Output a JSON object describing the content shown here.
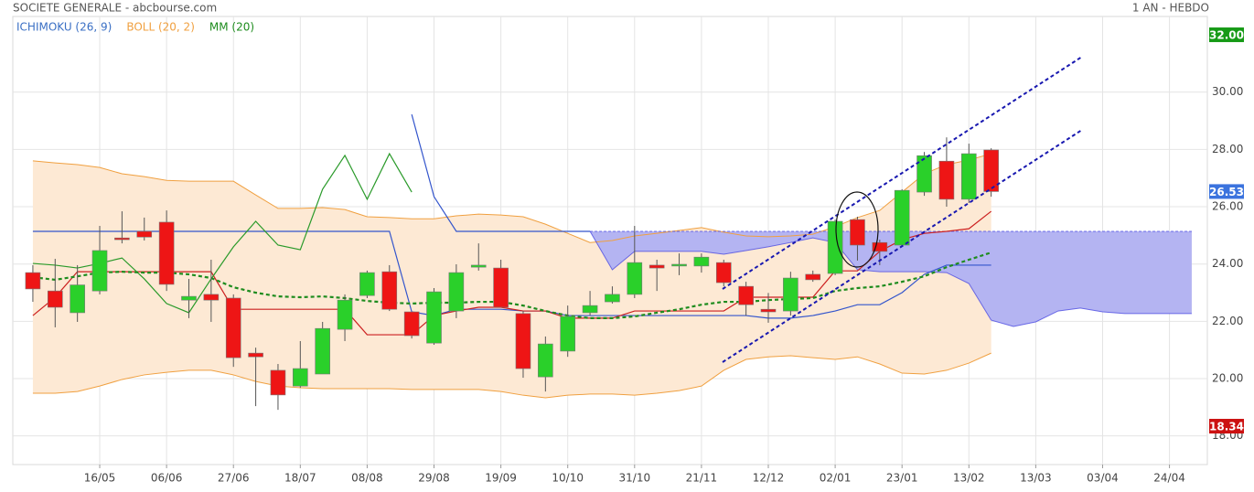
{
  "chart_data": {
    "type": "candlestick",
    "title": "SOCIETE GENERALE - abcbourse.com",
    "subtitle": "1 AN - HEBDO",
    "legend": [
      {
        "name": "ICHIMOKU (26, 9)",
        "color": "#3a6fc4"
      },
      {
        "name": "BOLL (20, 2)",
        "color": "#f0a040"
      },
      {
        "name": "MM (20)",
        "color": "#1e8c1e"
      }
    ],
    "xlim": [
      -0.9,
      52.7
    ],
    "ylim": [
      17.0,
      32.64
    ],
    "grid": true,
    "yticks": [
      {
        "value": 18,
        "label": "18.00"
      },
      {
        "value": 20,
        "label": "20.00"
      },
      {
        "value": 22,
        "label": "22.00"
      },
      {
        "value": 24,
        "label": "24.00"
      },
      {
        "value": 26,
        "label": "26.00"
      },
      {
        "value": 28,
        "label": "28.00"
      },
      {
        "value": 30,
        "label": "30.00"
      }
    ],
    "xticks": [
      {
        "value": 3,
        "label": "16/05"
      },
      {
        "value": 6,
        "label": "06/06"
      },
      {
        "value": 9,
        "label": "27/06"
      },
      {
        "value": 12,
        "label": "18/07"
      },
      {
        "value": 15,
        "label": "08/08"
      },
      {
        "value": 18,
        "label": "29/08"
      },
      {
        "value": 21,
        "label": "19/09"
      },
      {
        "value": 24,
        "label": "10/10"
      },
      {
        "value": 27,
        "label": "31/10"
      },
      {
        "value": 30,
        "label": "21/11"
      },
      {
        "value": 33,
        "label": "12/12"
      },
      {
        "value": 36,
        "label": "02/01"
      },
      {
        "value": 39,
        "label": "23/01"
      },
      {
        "value": 42,
        "label": "13/02"
      },
      {
        "value": 45,
        "label": "13/03"
      },
      {
        "value": 48,
        "label": "03/04"
      },
      {
        "value": 51,
        "label": "24/04"
      }
    ],
    "up_color": "#2ad02a",
    "down_color": "#ee1515",
    "x": [
      0,
      1,
      2,
      3,
      4,
      5,
      6,
      7,
      8,
      9,
      10,
      11,
      12,
      13,
      14,
      15,
      16,
      17,
      18,
      19,
      20,
      21,
      22,
      23,
      24,
      25,
      26,
      27,
      28,
      29,
      30,
      31,
      32,
      33,
      34,
      35,
      36,
      37,
      38,
      39,
      40,
      41,
      42,
      43
    ],
    "open": [
      23.7,
      23.06,
      22.3,
      23.06,
      24.91,
      25.14,
      25.46,
      22.74,
      22.94,
      22.81,
      20.89,
      20.29,
      19.74,
      20.16,
      21.72,
      22.9,
      23.73,
      22.33,
      21.24,
      22.36,
      23.89,
      23.86,
      22.27,
      20.06,
      20.96,
      22.3,
      22.68,
      22.94,
      23.96,
      23.93,
      23.93,
      24.05,
      23.22,
      22.42,
      22.36,
      23.64,
      23.67,
      25.55,
      24.75,
      24.66,
      26.51,
      27.59,
      26.26,
      27.98
    ],
    "high": [
      23.96,
      24.18,
      23.96,
      25.33,
      25.84,
      25.62,
      25.87,
      23.48,
      24.15,
      22.94,
      21.08,
      20.51,
      21.31,
      21.98,
      22.94,
      23.77,
      23.96,
      22.33,
      23.16,
      23.99,
      24.72,
      24.15,
      22.36,
      21.47,
      22.55,
      23.06,
      23.22,
      25.33,
      24.15,
      24.37,
      24.37,
      24.15,
      23.38,
      22.99,
      23.73,
      23.77,
      25.55,
      25.65,
      24.85,
      26.61,
      27.91,
      28.42,
      28.2,
      28.04
    ],
    "low": [
      22.68,
      21.79,
      21.98,
      22.94,
      24.72,
      24.82,
      23.06,
      22.11,
      21.98,
      20.41,
      19.04,
      18.91,
      19.68,
      20.16,
      21.31,
      22.81,
      22.36,
      21.4,
      21.18,
      22.11,
      23.77,
      22.49,
      20.03,
      19.55,
      20.76,
      22.2,
      22.62,
      22.81,
      23.06,
      23.61,
      23.7,
      23.22,
      22.2,
      21.95,
      22.2,
      23.38,
      23.61,
      24.12,
      23.96,
      24.6,
      26.38,
      26.0,
      26.13,
      26.35
    ],
    "close": [
      23.13,
      22.49,
      23.27,
      24.47,
      24.85,
      24.94,
      23.29,
      22.87,
      22.74,
      20.73,
      20.76,
      19.43,
      20.35,
      21.75,
      22.74,
      23.7,
      22.42,
      21.5,
      23.03,
      23.7,
      23.96,
      22.49,
      20.35,
      21.21,
      22.17,
      22.55,
      22.94,
      24.05,
      23.86,
      23.99,
      24.24,
      23.35,
      22.58,
      22.33,
      23.51,
      23.45,
      25.49,
      24.66,
      24.44,
      26.57,
      27.78,
      26.26,
      27.85,
      26.53
    ],
    "bollinger": {
      "color": "#f0a040",
      "fill": "#fde9d4",
      "upper": [
        27.6,
        27.53,
        27.47,
        27.37,
        27.15,
        27.05,
        26.92,
        26.89,
        26.89,
        26.89,
        26.41,
        25.94,
        25.94,
        25.97,
        25.9,
        25.65,
        25.62,
        25.58,
        25.58,
        25.68,
        25.74,
        25.71,
        25.65,
        25.39,
        25.07,
        24.75,
        24.82,
        24.98,
        25.07,
        25.17,
        25.27,
        25.11,
        24.98,
        24.95,
        24.98,
        25.04,
        25.3,
        25.62,
        25.87,
        26.51,
        27.15,
        27.47,
        27.63,
        27.85
      ],
      "lower": [
        19.49,
        19.49,
        19.55,
        19.74,
        19.97,
        20.13,
        20.22,
        20.29,
        20.29,
        20.13,
        19.9,
        19.74,
        19.68,
        19.65,
        19.65,
        19.65,
        19.65,
        19.62,
        19.62,
        19.62,
        19.62,
        19.55,
        19.42,
        19.33,
        19.42,
        19.46,
        19.46,
        19.42,
        19.49,
        19.58,
        19.74,
        20.29,
        20.67,
        20.76,
        20.8,
        20.73,
        20.67,
        20.76,
        20.51,
        20.19,
        20.16,
        20.29,
        20.54,
        20.89
      ]
    },
    "mm": {
      "color": "#1e8c1e",
      "values": [
        23.54,
        23.45,
        23.57,
        23.7,
        23.73,
        23.7,
        23.7,
        23.64,
        23.51,
        23.19,
        23.0,
        22.87,
        22.84,
        22.87,
        22.81,
        22.71,
        22.65,
        22.62,
        22.65,
        22.65,
        22.68,
        22.68,
        22.55,
        22.36,
        22.2,
        22.11,
        22.11,
        22.17,
        22.3,
        22.42,
        22.58,
        22.68,
        22.68,
        22.74,
        22.78,
        22.81,
        23.06,
        23.16,
        23.22,
        23.38,
        23.57,
        23.89,
        24.15,
        24.4
      ]
    },
    "tenkan": {
      "color": "#cc2020",
      "values": [
        22.2,
        22.84,
        23.73,
        23.73,
        23.73,
        23.73,
        23.73,
        23.73,
        23.73,
        22.42,
        22.42,
        22.42,
        22.42,
        22.42,
        22.42,
        21.53,
        21.53,
        21.53,
        22.2,
        22.36,
        22.49,
        22.49,
        22.36,
        22.36,
        22.11,
        22.11,
        22.11,
        22.36,
        22.36,
        22.36,
        22.36,
        22.36,
        22.84,
        22.84,
        22.84,
        22.84,
        23.76,
        23.76,
        24.44,
        24.85,
        25.07,
        25.14,
        25.23,
        25.84
      ]
    },
    "kijun": {
      "color": "#3355cc",
      "values": [
        25.14,
        25.14,
        25.14,
        25.14,
        25.14,
        25.14,
        25.14,
        25.14,
        25.14,
        25.14,
        25.14,
        25.14,
        25.14,
        25.14,
        25.14,
        25.14,
        25.14,
        22.33,
        22.2,
        22.42,
        22.42,
        22.42,
        22.36,
        22.36,
        22.2,
        22.2,
        22.2,
        22.2,
        22.2,
        22.2,
        22.2,
        22.2,
        22.2,
        22.11,
        22.11,
        22.2,
        22.36,
        22.58,
        22.58,
        23.0,
        23.64,
        23.96,
        23.96,
        23.96
      ]
    },
    "chikou": {
      "color": "#2a9a2a",
      "x": [
        0,
        1,
        2,
        3,
        4,
        5,
        6,
        7,
        8,
        9,
        10,
        11,
        12,
        13,
        14,
        15,
        16,
        17
      ],
      "values": [
        24.02,
        23.96,
        23.86,
        24.02,
        24.21,
        23.48,
        22.62,
        22.3,
        23.48,
        24.6,
        25.49,
        24.66,
        24.5,
        26.61,
        27.79,
        26.26,
        27.85,
        26.51
      ]
    },
    "senkou_line": {
      "color": "#3355cc",
      "x": [
        17,
        18,
        19,
        25
      ],
      "values": [
        29.22,
        26.35,
        25.14,
        25.14
      ]
    },
    "cloud": {
      "color": "#3a3ae0",
      "fill": "#b4b4f2",
      "x": [
        25,
        26,
        27,
        28,
        29,
        30,
        31,
        32,
        33,
        34,
        35,
        36,
        37,
        38,
        39,
        40,
        41,
        42,
        43,
        44,
        45,
        46,
        47,
        48,
        49,
        50,
        51,
        52
      ],
      "span_a": [
        25.14,
        23.8,
        24.44,
        24.44,
        24.44,
        24.44,
        24.34,
        24.47,
        24.6,
        24.75,
        24.91,
        24.75,
        23.8,
        23.73,
        23.73,
        23.73,
        23.7,
        23.32,
        22.04,
        21.82,
        21.98,
        22.36,
        22.46,
        22.33,
        22.27,
        22.27,
        22.27,
        22.27
      ],
      "span_b": [
        25.14,
        25.14,
        25.14,
        25.14,
        25.14,
        25.14,
        25.14,
        25.14,
        25.14,
        25.14,
        25.14,
        25.14,
        25.14,
        25.14,
        25.14,
        25.14,
        25.14,
        25.14,
        25.14,
        25.14,
        25.14,
        25.14,
        25.14,
        25.14,
        25.14,
        25.14,
        25.14,
        25.14
      ]
    },
    "price_labels": [
      {
        "value": 32,
        "label": "32.00",
        "color": "#169a16"
      },
      {
        "value": 26.53,
        "label": "26.53",
        "color": "#3b73de"
      },
      {
        "value": 18.34,
        "label": "18.34",
        "color": "#cc1111"
      }
    ]
  }
}
